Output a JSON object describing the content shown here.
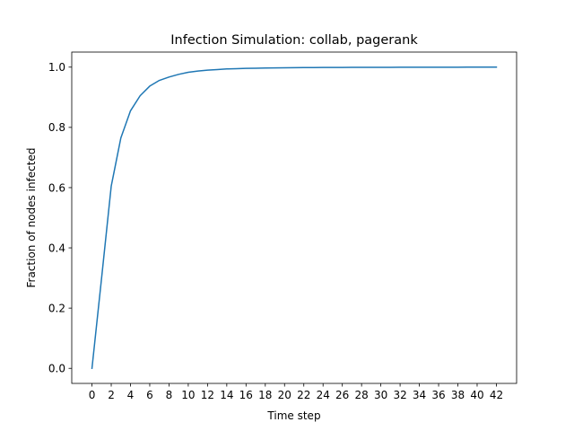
{
  "chart_data": {
    "type": "line",
    "title": "Infection Simulation: collab, pagerank",
    "xlabel": "Time step",
    "ylabel": "Fraction of nodes infected",
    "xlim": [
      -2.1,
      44.1
    ],
    "ylim": [
      -0.05,
      1.05
    ],
    "xticks": [
      0,
      2,
      4,
      6,
      8,
      10,
      12,
      14,
      16,
      18,
      20,
      22,
      24,
      26,
      28,
      30,
      32,
      34,
      36,
      38,
      40,
      42
    ],
    "yticks": [
      0.0,
      0.2,
      0.4,
      0.6,
      0.8,
      1.0
    ],
    "ytick_labels": [
      "0.0",
      "0.2",
      "0.4",
      "0.6",
      "0.8",
      "1.0"
    ],
    "grid": false,
    "series": [
      {
        "color": "#1f77b4",
        "x": [
          0,
          1,
          2,
          3,
          4,
          5,
          6,
          7,
          8,
          9,
          10,
          11,
          12,
          13,
          14,
          15,
          16,
          17,
          18,
          19,
          20,
          21,
          22,
          23,
          24,
          25,
          26,
          27,
          28,
          29,
          30,
          31,
          32,
          33,
          34,
          35,
          36,
          37,
          38,
          39,
          40,
          41,
          42
        ],
        "y": [
          0.0,
          0.3,
          0.605,
          0.765,
          0.855,
          0.905,
          0.937,
          0.956,
          0.967,
          0.976,
          0.983,
          0.987,
          0.99,
          0.992,
          0.994,
          0.995,
          0.996,
          0.9965,
          0.997,
          0.9975,
          0.998,
          0.9982,
          0.9984,
          0.9986,
          0.9988,
          0.999,
          0.9991,
          0.9992,
          0.9993,
          0.9994,
          0.9995,
          0.9995,
          0.9996,
          0.9996,
          0.9997,
          0.9997,
          0.9998,
          0.9998,
          0.9998,
          0.9999,
          0.9999,
          0.9999,
          0.9999
        ]
      }
    ]
  }
}
